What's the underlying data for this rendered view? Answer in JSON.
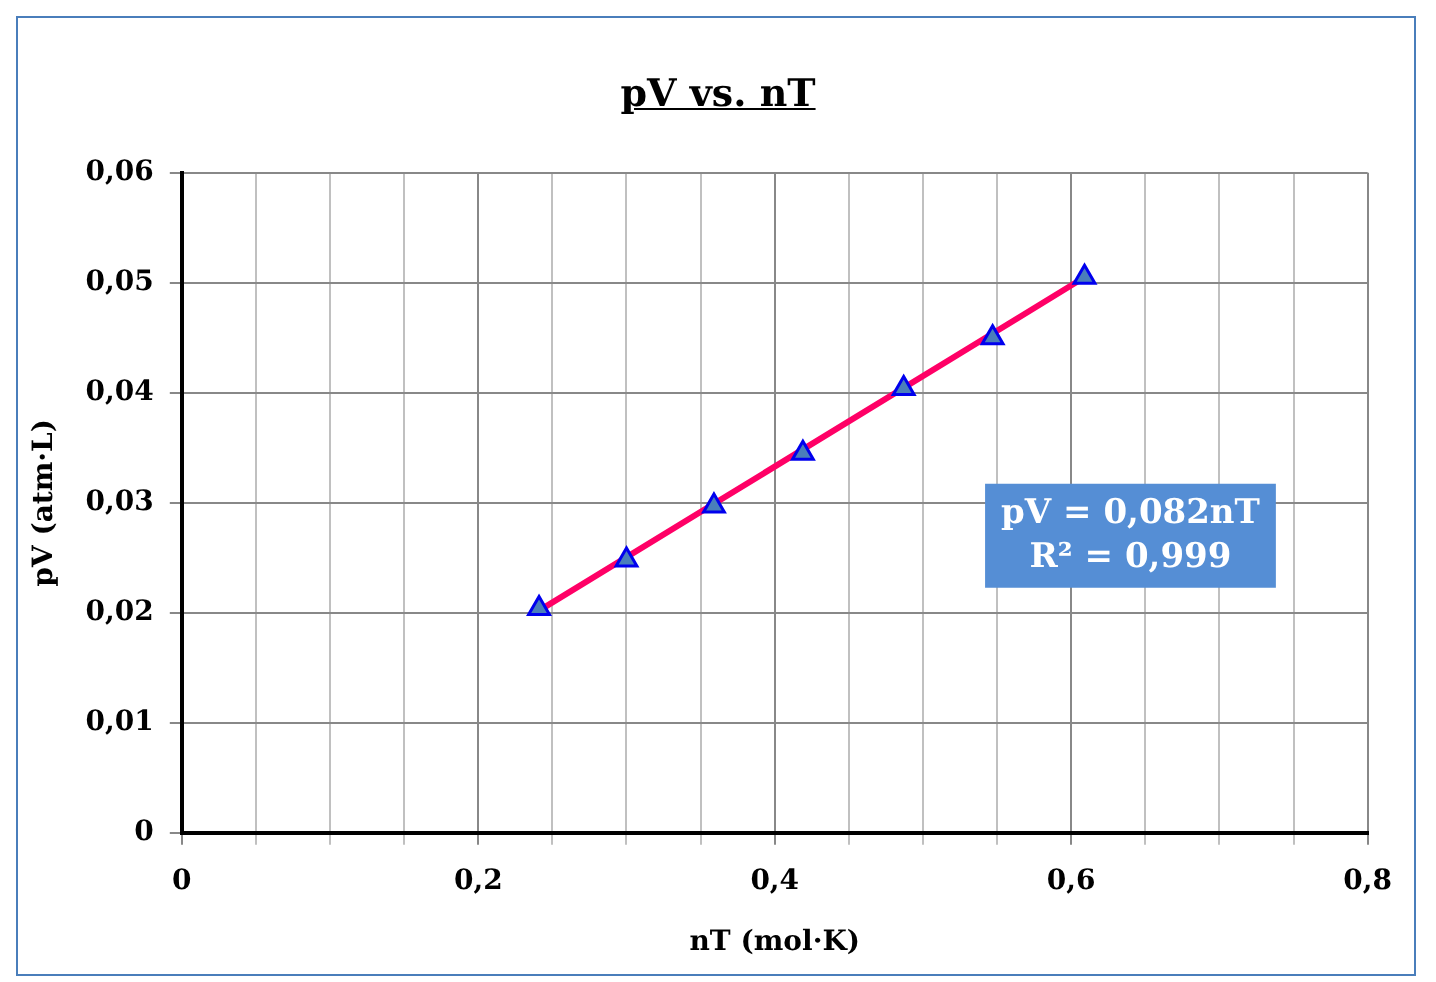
{
  "chart_data": {
    "type": "scatter",
    "title": "pV vs. nT",
    "xlabel": "nT (mol·K)",
    "ylabel": "pV (atm·L)",
    "series": [
      {
        "type": "scatter",
        "color": "#4a7ebb",
        "marker": "triangle",
        "x": [
          0.241,
          0.3,
          0.359,
          0.419,
          0.487,
          0.547,
          0.609
        ],
        "values": [
          0.0204,
          0.0248,
          0.0297,
          0.0345,
          0.0404,
          0.045,
          0.0505
        ]
      },
      {
        "type": "line",
        "color": "#ff0066",
        "marker": "none",
        "line_style": "solid",
        "x": [
          0.241,
          0.609
        ],
        "values": [
          0.0202,
          0.0505
        ]
      }
    ],
    "annotations": [
      "pV = 0,082nT\nR² = 0,999"
    ],
    "xlim": [
      0,
      0.8
    ],
    "ylim": [
      0,
      0.06
    ],
    "xticks": [
      {
        "value": 0,
        "label": "0"
      },
      {
        "value": 0.05,
        "label": null
      },
      {
        "value": 0.1,
        "label": null
      },
      {
        "value": 0.15,
        "label": null
      },
      {
        "value": 0.2,
        "label": "0,2"
      },
      {
        "value": 0.25,
        "label": null
      },
      {
        "value": 0.3,
        "label": null
      },
      {
        "value": 0.35,
        "label": null
      },
      {
        "value": 0.4,
        "label": "0,4"
      },
      {
        "value": 0.45,
        "label": null
      },
      {
        "value": 0.5,
        "label": null
      },
      {
        "value": 0.55,
        "label": null
      },
      {
        "value": 0.6,
        "label": "0,6"
      },
      {
        "value": 0.65,
        "label": null
      },
      {
        "value": 0.7,
        "label": null
      },
      {
        "value": 0.75,
        "label": null
      },
      {
        "value": 0.8,
        "label": "0,8"
      }
    ],
    "yticks": [
      {
        "value": 0,
        "label": "0"
      },
      {
        "value": 0.01,
        "label": "0,01"
      },
      {
        "value": 0.02,
        "label": "0,02"
      },
      {
        "value": 0.03,
        "label": "0,03"
      },
      {
        "value": 0.04,
        "label": "0,04"
      },
      {
        "value": 0.05,
        "label": "0,05"
      },
      {
        "value": 0.06,
        "label": "0,06"
      }
    ],
    "grid": true,
    "legend": false
  }
}
